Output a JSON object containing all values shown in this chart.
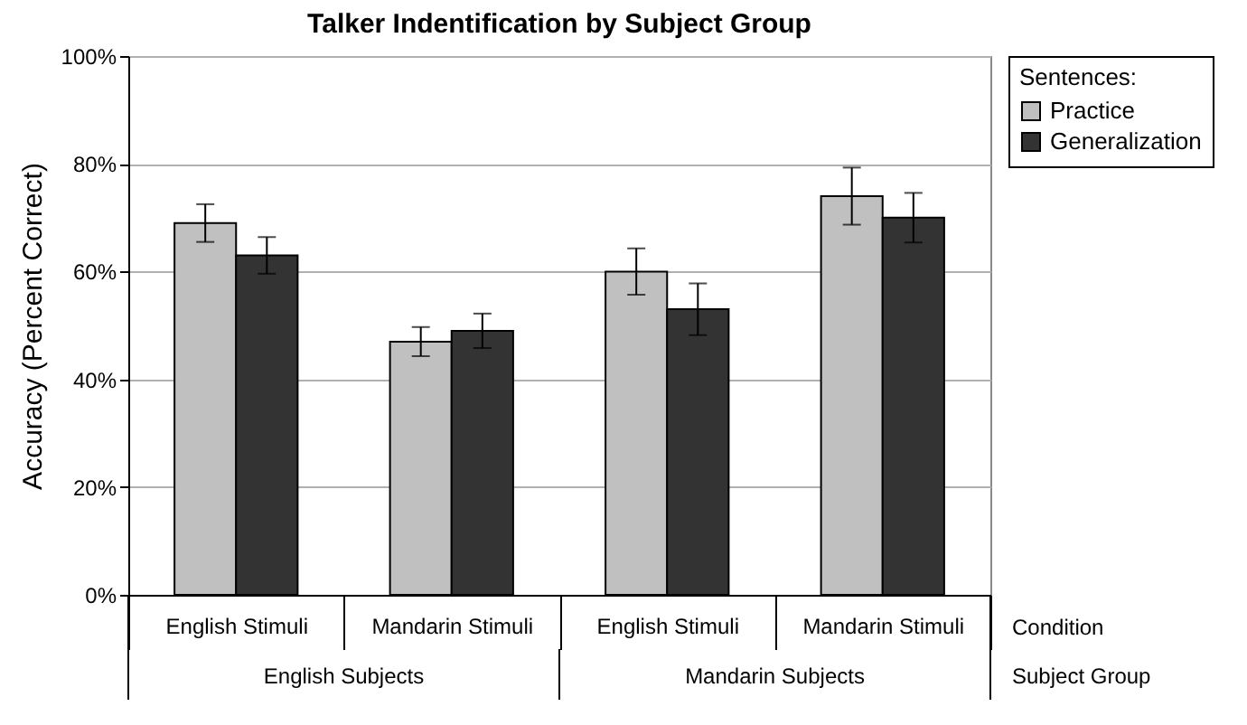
{
  "chart_data": {
    "type": "bar",
    "title": "Talker Indentification by Subject Group",
    "ylabel": "Accuracy (Percent Correct)",
    "legend_title": "Sentences:",
    "legend": "right",
    "grid": "y",
    "categories": [
      "English Stimuli",
      "Mandarin Stimuli",
      "English Stimuli",
      "Mandarin Stimuli"
    ],
    "annotations": [
      "Condition",
      "English Subjects",
      "Mandarin Subjects",
      "Subject Group"
    ],
    "ylim": [
      0,
      100
    ],
    "yticks": [
      {
        "value": 0,
        "label": "0%"
      },
      {
        "value": 20,
        "label": "20%"
      },
      {
        "value": 40,
        "label": "40%"
      },
      {
        "value": 60,
        "label": "60%"
      },
      {
        "value": 80,
        "label": "80%"
      },
      {
        "value": 100,
        "label": "100%"
      }
    ],
    "series": [
      {
        "name": "Practice",
        "color": "#c0c0c0",
        "values": [
          69,
          47,
          60,
          74
        ],
        "errors": [
          3.5,
          2.7,
          4.3,
          5.3
        ]
      },
      {
        "name": "Generalization",
        "color": "#333333",
        "values": [
          63,
          49,
          53,
          70
        ],
        "errors": [
          3.4,
          3.2,
          4.8,
          4.6
        ]
      }
    ]
  }
}
